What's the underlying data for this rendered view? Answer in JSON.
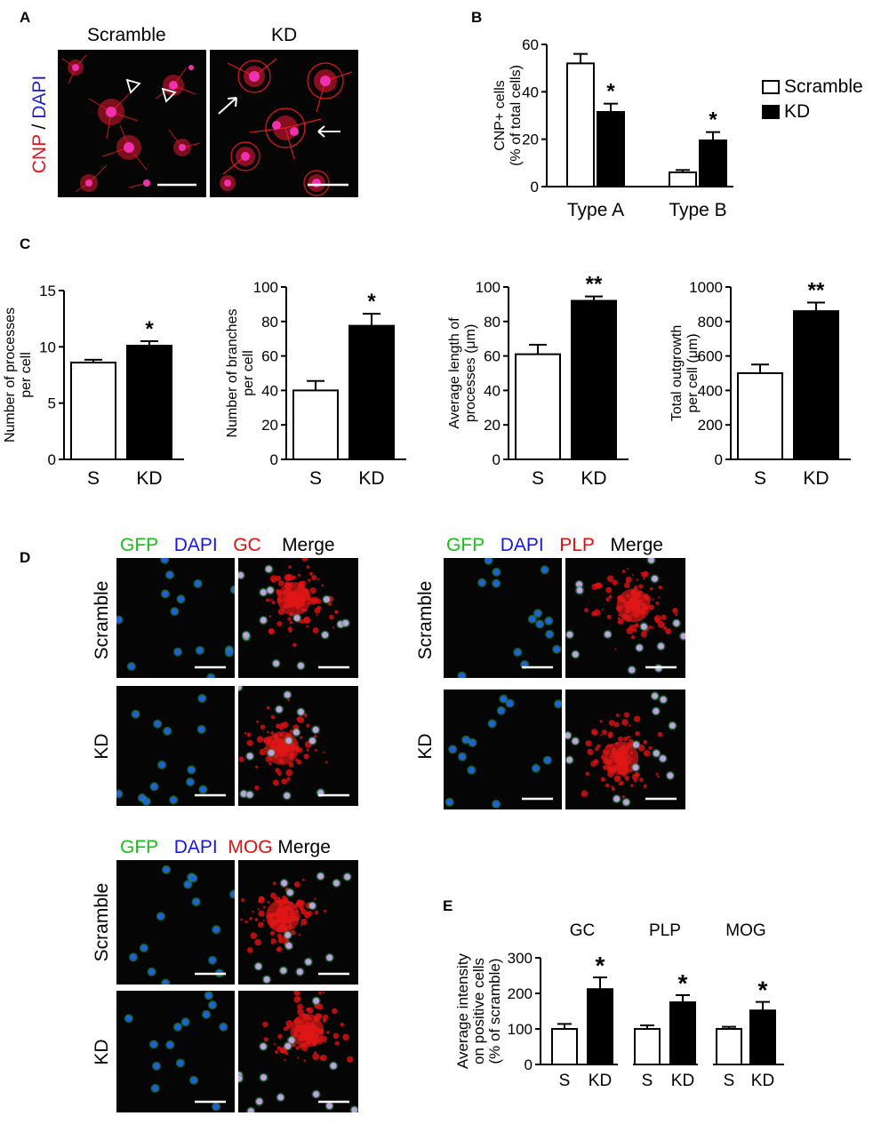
{
  "panelA": {
    "label": "A",
    "cols": [
      "Scramble",
      "KD"
    ],
    "ylabel_cnp": "CNP",
    "ylabel_sep": " / ",
    "ylabel_dapi": "DAPI",
    "colors": {
      "cnp": "#e0141e",
      "dapi": "#2020d0"
    }
  },
  "panelB": {
    "label": "B"
  },
  "panelC": {
    "label": "C"
  },
  "panelD": {
    "label": "D",
    "gfp": "GFP",
    "dapi": "DAPI",
    "merge": "Merge",
    "gc": "GC",
    "plp": "PLP",
    "mog": "MOG",
    "rows": [
      "Scramble",
      "KD"
    ],
    "colors": {
      "gfp": "#18c018",
      "dapi": "#1818e0",
      "marker": "#e01010"
    }
  },
  "panelE": {
    "label": "E"
  },
  "chart_data": [
    {
      "id": "B",
      "type": "bar",
      "categories": [
        "Type A",
        "Type B"
      ],
      "series": [
        {
          "name": "Scramble",
          "values": [
            52,
            6
          ],
          "errors": [
            4,
            1
          ]
        },
        {
          "name": "KD",
          "values": [
            31.5,
            19.5
          ],
          "errors": [
            3.5,
            3.5
          ]
        }
      ],
      "sig": [
        "*",
        "*"
      ],
      "ylabel_line1": "CNP+ cells",
      "ylabel_line2": "(% of total cells)",
      "ylim": [
        0,
        60
      ],
      "yticks": [
        0,
        20,
        40,
        60
      ],
      "legend": "right"
    },
    {
      "id": "C1",
      "type": "bar",
      "categories": [
        "S",
        "KD"
      ],
      "values": [
        8.6,
        10.1
      ],
      "errors": [
        0.25,
        0.4
      ],
      "sig": [
        "",
        "*"
      ],
      "ylabel_line1": "Number of processes",
      "ylabel_line2": "per cell",
      "ylim": [
        0,
        15
      ],
      "yticks": [
        0,
        5,
        10,
        15
      ]
    },
    {
      "id": "C2",
      "type": "bar",
      "categories": [
        "S",
        "KD"
      ],
      "values": [
        40,
        77.5
      ],
      "errors": [
        5.5,
        7
      ],
      "sig": [
        "",
        "*"
      ],
      "ylabel_line1": "Number of branches",
      "ylabel_line2": "per cell",
      "ylim": [
        0,
        100
      ],
      "yticks": [
        0,
        20,
        40,
        60,
        80,
        100
      ]
    },
    {
      "id": "C3",
      "type": "bar",
      "categories": [
        "S",
        "KD"
      ],
      "values": [
        61,
        92
      ],
      "errors": [
        5.5,
        2.5
      ],
      "sig": [
        "",
        "**"
      ],
      "ylabel_line1": "Average length of",
      "ylabel_line2": "processes (μm)",
      "ylim": [
        0,
        100
      ],
      "yticks": [
        0,
        20,
        40,
        60,
        80,
        100
      ]
    },
    {
      "id": "C4",
      "type": "bar",
      "categories": [
        "S",
        "KD"
      ],
      "values": [
        500,
        860
      ],
      "errors": [
        50,
        50
      ],
      "sig": [
        "",
        "**"
      ],
      "ylabel_line1": "Total outgrowth",
      "ylabel_line2": "per cell (μm)",
      "ylim": [
        0,
        1000
      ],
      "yticks": [
        0,
        200,
        400,
        600,
        800,
        1000
      ]
    },
    {
      "id": "E",
      "type": "bar",
      "groups": [
        "GC",
        "PLP",
        "MOG"
      ],
      "categories": [
        "S",
        "KD",
        "S",
        "KD",
        "S",
        "KD"
      ],
      "values": [
        100,
        212,
        100,
        175,
        100,
        152
      ],
      "errors": [
        14,
        33,
        10,
        20,
        6,
        24
      ],
      "sig": [
        "",
        "*",
        "",
        "*",
        "",
        "*"
      ],
      "ylabel_line1": "Average intensity",
      "ylabel_line2": "on positive cells",
      "ylabel_line3": "(% of scramble)",
      "ylim": [
        0,
        300
      ],
      "yticks": [
        0,
        100,
        200,
        300
      ]
    }
  ]
}
